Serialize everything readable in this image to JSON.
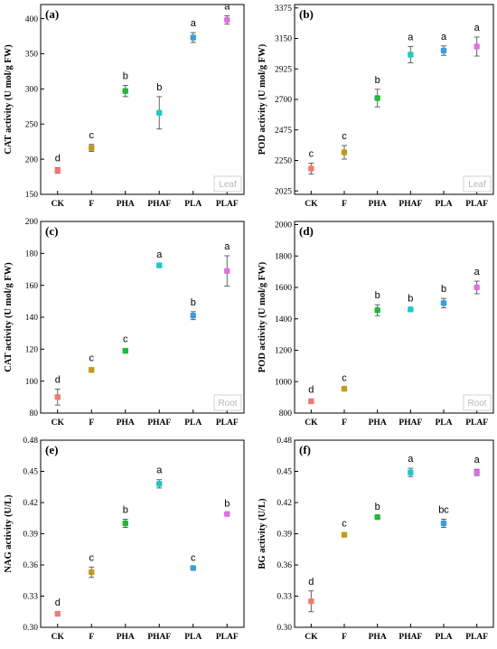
{
  "colors": {
    "CK": "#f07a73",
    "F": "#c49a1a",
    "PHA": "#22b83a",
    "PHAF": "#1ec8c8",
    "PLA": "#3a9de0",
    "PLAF": "#e070e6"
  },
  "chart_data": [
    {
      "id": "a",
      "type": "scatter",
      "panel_label": "(a)",
      "corner_label": "Leaf",
      "ylabel": "CAT activity (U mol/g FW)",
      "categories": [
        "CK",
        "F",
        "PHA",
        "PHAF",
        "PLA",
        "PLAF"
      ],
      "values": [
        184,
        216,
        297,
        266,
        373,
        398
      ],
      "errors": [
        4,
        5,
        8,
        23,
        7,
        6
      ],
      "letters": [
        "d",
        "c",
        "b",
        "b",
        "a",
        "a"
      ],
      "ylim": [
        150,
        420
      ],
      "yticks": [
        150,
        200,
        250,
        300,
        350,
        400
      ]
    },
    {
      "id": "b",
      "type": "scatter",
      "panel_label": "(b)",
      "corner_label": "Leaf",
      "ylabel": "POD activity (U mol/g FW)",
      "categories": [
        "CK",
        "F",
        "PHA",
        "PHAF",
        "PLA",
        "PLAF"
      ],
      "values": [
        2190,
        2310,
        2710,
        3030,
        3060,
        3090
      ],
      "errors": [
        40,
        50,
        65,
        60,
        35,
        70
      ],
      "letters": [
        "c",
        "c",
        "b",
        "a",
        "a",
        "a"
      ],
      "ylim": [
        2000,
        3400
      ],
      "yticks": [
        2025,
        2250,
        2475,
        2700,
        2925,
        3150,
        3375
      ]
    },
    {
      "id": "c",
      "type": "scatter",
      "panel_label": "(c)",
      "corner_label": "Root",
      "ylabel": "CAT activity (U mol/g FW)",
      "categories": [
        "CK",
        "F",
        "PHA",
        "PHAF",
        "PLA",
        "PLAF"
      ],
      "values": [
        90,
        107,
        119,
        172.5,
        141,
        169
      ],
      "errors": [
        5,
        1.5,
        1.5,
        1,
        2.5,
        9.5
      ],
      "letters": [
        "d",
        "c",
        "c",
        "a",
        "b",
        "a"
      ],
      "ylim": [
        80,
        200
      ],
      "yticks": [
        80,
        100,
        120,
        140,
        160,
        180,
        200
      ]
    },
    {
      "id": "d",
      "type": "scatter",
      "panel_label": "(d)",
      "corner_label": "Root",
      "ylabel": "POD activity (U mol/g FW)",
      "categories": [
        "CK",
        "F",
        "PHA",
        "PHAF",
        "PLA",
        "PLAF"
      ],
      "values": [
        875,
        955,
        1455,
        1460,
        1500,
        1600
      ],
      "errors": [
        15,
        8,
        35,
        10,
        30,
        40
      ],
      "letters": [
        "d",
        "c",
        "b",
        "b",
        "b",
        "a"
      ],
      "ylim": [
        800,
        2020
      ],
      "yticks": [
        800,
        1000,
        1200,
        1400,
        1600,
        1800,
        2000
      ]
    },
    {
      "id": "e",
      "type": "scatter",
      "panel_label": "(e)",
      "corner_label": "",
      "ylabel": "NAG activity (U/L)",
      "categories": [
        "CK",
        "F",
        "PHA",
        "PHAF",
        "PLA",
        "PLAF"
      ],
      "values": [
        0.313,
        0.353,
        0.4,
        0.438,
        0.357,
        0.409
      ],
      "errors": [
        0.002,
        0.005,
        0.004,
        0.004,
        0.001,
        0.001
      ],
      "letters": [
        "d",
        "c",
        "b",
        "a",
        "c",
        "b"
      ],
      "ylim": [
        0.3,
        0.48
      ],
      "yticks": [
        0.3,
        0.33,
        0.36,
        0.39,
        0.42,
        0.45,
        0.48
      ]
    },
    {
      "id": "f",
      "type": "scatter",
      "panel_label": "(f)",
      "corner_label": "",
      "ylabel": "BG activity (U/L)",
      "categories": [
        "CK",
        "F",
        "PHA",
        "PHAF",
        "PLA",
        "PLAF"
      ],
      "values": [
        0.325,
        0.389,
        0.406,
        0.449,
        0.4,
        0.449
      ],
      "errors": [
        0.01,
        0.002,
        0.001,
        0.004,
        0.004,
        0.003
      ],
      "letters": [
        "d",
        "c",
        "b",
        "a",
        "bc",
        "a"
      ],
      "ylim": [
        0.3,
        0.48
      ],
      "yticks": [
        0.3,
        0.33,
        0.36,
        0.39,
        0.42,
        0.45,
        0.48
      ]
    }
  ]
}
